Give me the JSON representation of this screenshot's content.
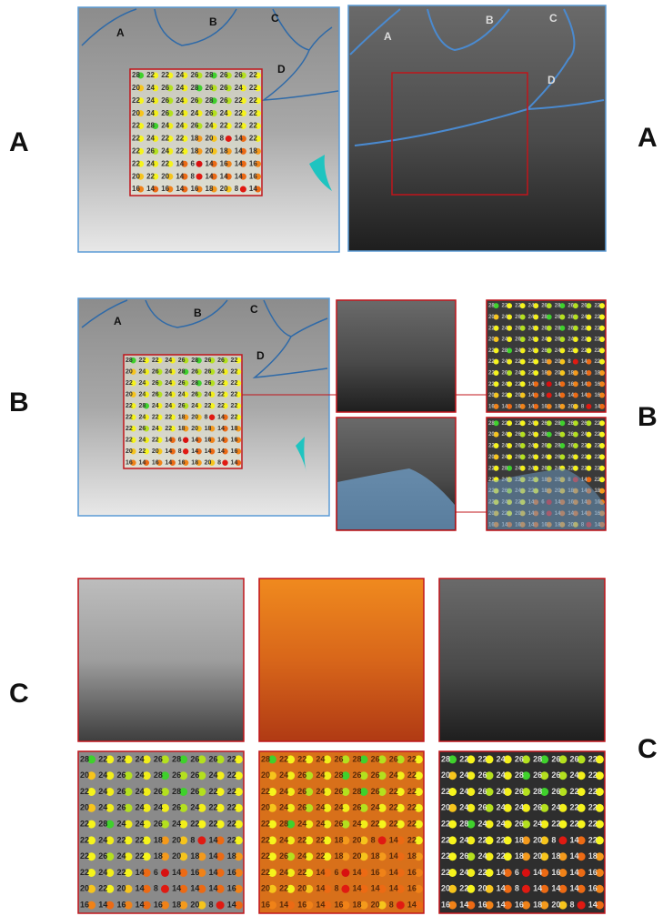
{
  "panels": [
    {
      "label": "A"
    },
    {
      "label": "B"
    },
    {
      "label": "C"
    }
  ],
  "vessel_labels": [
    "A",
    "B",
    "C",
    "D"
  ],
  "sensitivity_grid": [
    [
      28,
      22,
      22,
      24,
      26,
      28,
      26,
      26,
      22
    ],
    [
      20,
      24,
      26,
      24,
      28,
      26,
      26,
      24,
      22
    ],
    [
      22,
      24,
      26,
      24,
      26,
      28,
      26,
      22,
      22
    ],
    [
      20,
      24,
      26,
      24,
      24,
      26,
      24,
      22,
      22
    ],
    [
      22,
      28,
      24,
      24,
      26,
      24,
      22,
      22,
      22
    ],
    [
      22,
      24,
      22,
      22,
      18,
      20,
      8,
      14,
      22
    ],
    [
      22,
      26,
      24,
      22,
      18,
      20,
      18,
      14,
      18
    ],
    [
      22,
      24,
      22,
      14,
      6,
      14,
      16,
      14,
      16
    ],
    [
      20,
      22,
      20,
      14,
      8,
      14,
      14,
      14,
      16
    ],
    [
      16,
      14,
      16,
      14,
      16,
      18,
      20,
      8,
      14
    ]
  ],
  "sensitivity_colors": {
    "28": "#3fd12c",
    "26": "#b4e01e",
    "24": "#f2ee1a",
    "22": "#f6f41c",
    "20": "#f6c41c",
    "18": "#f49a1c",
    "16": "#f08218",
    "14": "#ec6a14",
    "8": "#e01a12",
    "6": "#d81010"
  }
}
